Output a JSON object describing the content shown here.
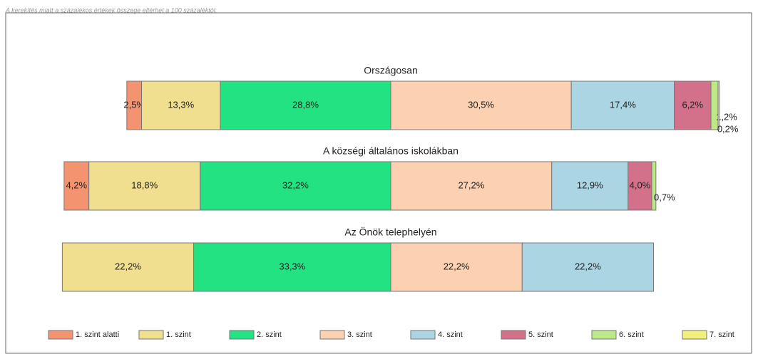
{
  "chart_data": {
    "type": "bar",
    "orientation": "horizontal",
    "subtitle": "A kerekítés miatt a százalékos értékek összege eltérhet a 100 százaléktól.",
    "categories": [
      "Országosan",
      "A községi általános iskolákban",
      "Az Önök telephelyén"
    ],
    "series": [
      {
        "name": "1. szint alatti",
        "color": "#f4936f",
        "values": [
          2.5,
          4.2,
          null
        ],
        "value_labels": [
          "2,5%",
          "4,2%",
          null
        ]
      },
      {
        "name": "1. szint",
        "color": "#efdf8e",
        "values": [
          13.3,
          18.8,
          22.2
        ],
        "value_labels": [
          "13,3%",
          "18,8%",
          "22,2%"
        ]
      },
      {
        "name": "2. szint",
        "color": "#22e281",
        "values": [
          28.8,
          32.2,
          33.3
        ],
        "value_labels": [
          "28,8%",
          "32,2%",
          "33,3%"
        ]
      },
      {
        "name": "3. szint",
        "color": "#fbd1b2",
        "values": [
          30.5,
          27.2,
          22.2
        ],
        "value_labels": [
          "30,5%",
          "27,2%",
          "22,2%"
        ]
      },
      {
        "name": "4. szint",
        "color": "#acd5e3",
        "values": [
          17.4,
          12.9,
          22.2
        ],
        "value_labels": [
          "17,4%",
          "12,9%",
          "22,2%"
        ]
      },
      {
        "name": "5. szint",
        "color": "#d3718b",
        "values": [
          6.2,
          4.0,
          null
        ],
        "value_labels": [
          "6,2%",
          "4,0%",
          null
        ]
      },
      {
        "name": "6. szint",
        "color": "#bce887",
        "values": [
          1.2,
          0.7,
          null
        ],
        "value_labels": [
          "1,2%",
          "0,7%",
          null
        ]
      },
      {
        "name": "7. szint",
        "color": "#f2f079",
        "values": [
          0.2,
          null,
          null
        ],
        "value_labels": [
          "0,2%",
          null,
          null
        ]
      }
    ]
  }
}
